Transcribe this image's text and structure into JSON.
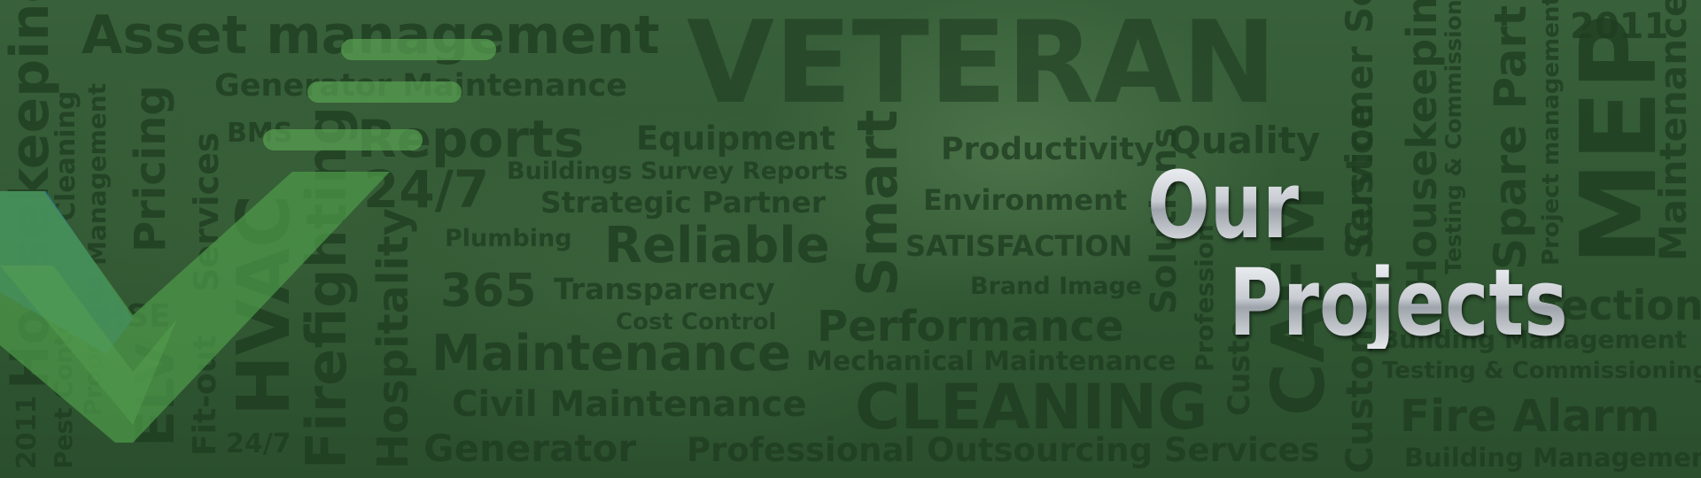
{
  "title": {
    "line1": "Our",
    "line2": "Projects"
  },
  "wordcloud": {
    "asset_management": "Asset management",
    "veteran": "VETERAN",
    "generator_maintenance": "Generator Maintenance",
    "bms": "BMS",
    "reports": "Reports",
    "equipment": "Equipment",
    "buildings_survey_reports": "Buildings Survey Reports",
    "strategic_partner": "Strategic Partner",
    "twenty_four_seven_1": "24/7",
    "plumbing": "Plumbing",
    "reliable": "Reliable",
    "three_sixty_five": "365",
    "transparency": "Transparency",
    "cost_control": "Cost Control",
    "hse": "HSE",
    "maintenance_big": "Maintenance",
    "civil_maintenance": "Civil Maintenance",
    "generator": "Generator",
    "twenty_four_seven_2": "24/7",
    "professional_outsourcing": "Professional Outsourcing Services",
    "productivity": "Productivity",
    "quality": "Quality",
    "environment": "Environment",
    "satisfaction": "SATISFACTION",
    "brand_image": "Brand Image",
    "performance": "Performance",
    "mechanical_maintenance": "Mechanical Maintenance",
    "cleaning": "CLEANING",
    "fire_alarm": "Fire Alarm",
    "building_management_bottom": "Building Management",
    "testing_commissioning_h": "Testing & Commissioning",
    "building_management_mid": "Building Management",
    "infection": "fection",
    "year_2011_top": "2011",
    "v_housekeeping_left": "Housekeeping",
    "v_cleaning": "Cleaning",
    "v_management": "Management",
    "v_properties": "Properties",
    "v_pest_control": "Pest Control",
    "v_2011_left": "2011",
    "v_pricing": "Pricing",
    "v_elv": "ELV",
    "v_services": "Services",
    "v_fitout": "Fit-out",
    "v_hvac": "HVAC",
    "v_firefighting": "Firefighting",
    "v_hospitality": "Hospitality",
    "v_smart": "Smart",
    "v_solutions": "Solutions",
    "v_professional": "Profession",
    "v_cafm": "CAFM",
    "v_customer_service_top": "Customer Service",
    "v_customer_bottom": "Custo",
    "v_customer_service_low": "Customer Service",
    "v_housekeeping_right": "Housekeeping",
    "v_testing_commissioning": "Testing & Commissioning",
    "v_spare_part": "Spare Part",
    "v_project_management": "Project management",
    "v_mep": "MEP",
    "v_maintenance_right": "Maintenance"
  },
  "logo": {
    "colors": {
      "blue": "#2f6f8a",
      "green": "#4e9a4a",
      "bar": "#5aa353"
    }
  }
}
